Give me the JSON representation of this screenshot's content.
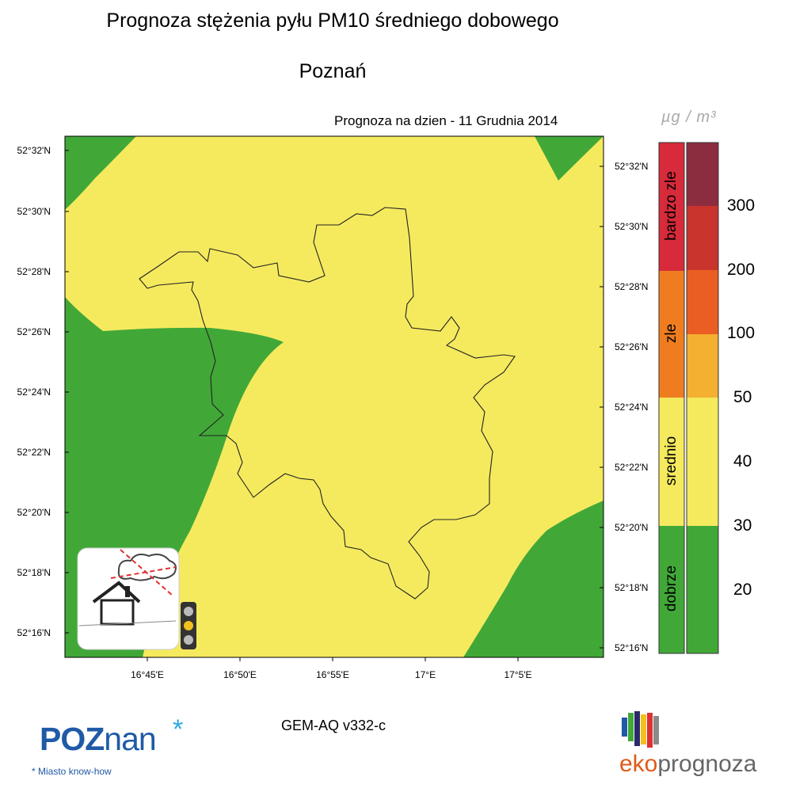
{
  "header": {
    "title": "Prognoza stężenia pyłu PM10 średniego dobowego",
    "city": "Poznań",
    "forecast_date": "Prognoza na dzien -  11 Grudnia 2014",
    "unit": "µg / m³"
  },
  "map": {
    "lat_ticks": [
      "52°32'N",
      "52°30'N",
      "52°28'N",
      "52°26'N",
      "52°24'N",
      "52°22'N",
      "52°20'N",
      "52°18'N",
      "52°16'N"
    ],
    "lon_ticks": [
      "16°45'E",
      "16°50'E",
      "16°55'E",
      "17°E",
      "17°5'E"
    ],
    "colors": {
      "good": "#41a838",
      "moderate": "#f5ea5e"
    }
  },
  "legend": {
    "categories": [
      {
        "label": "bardzo zle",
        "color": "#d72a3a"
      },
      {
        "label": "zle",
        "color": "#ef7d1f"
      },
      {
        "label": "srednio",
        "color": "#f5ea5e"
      },
      {
        "label": "dobrze",
        "color": "#41a838"
      }
    ],
    "scale": [
      {
        "color": "#8c2c3f"
      },
      {
        "color": "#c9342c"
      },
      {
        "color": "#ea5e23"
      },
      {
        "color": "#f4b030"
      },
      {
        "color": "#f5ea5e"
      },
      {
        "color": "#41a838"
      }
    ],
    "scale_labels": [
      "300",
      "200",
      "100",
      "50",
      "40",
      "30",
      "20"
    ]
  },
  "footer": {
    "model": "GEM-AQ v332-c",
    "poznan_logo_a": "POZ",
    "poznan_logo_b": "nan",
    "poznan_tagline": "Miasto know-how",
    "eko_a": "eko",
    "eko_b": "prognoza"
  }
}
